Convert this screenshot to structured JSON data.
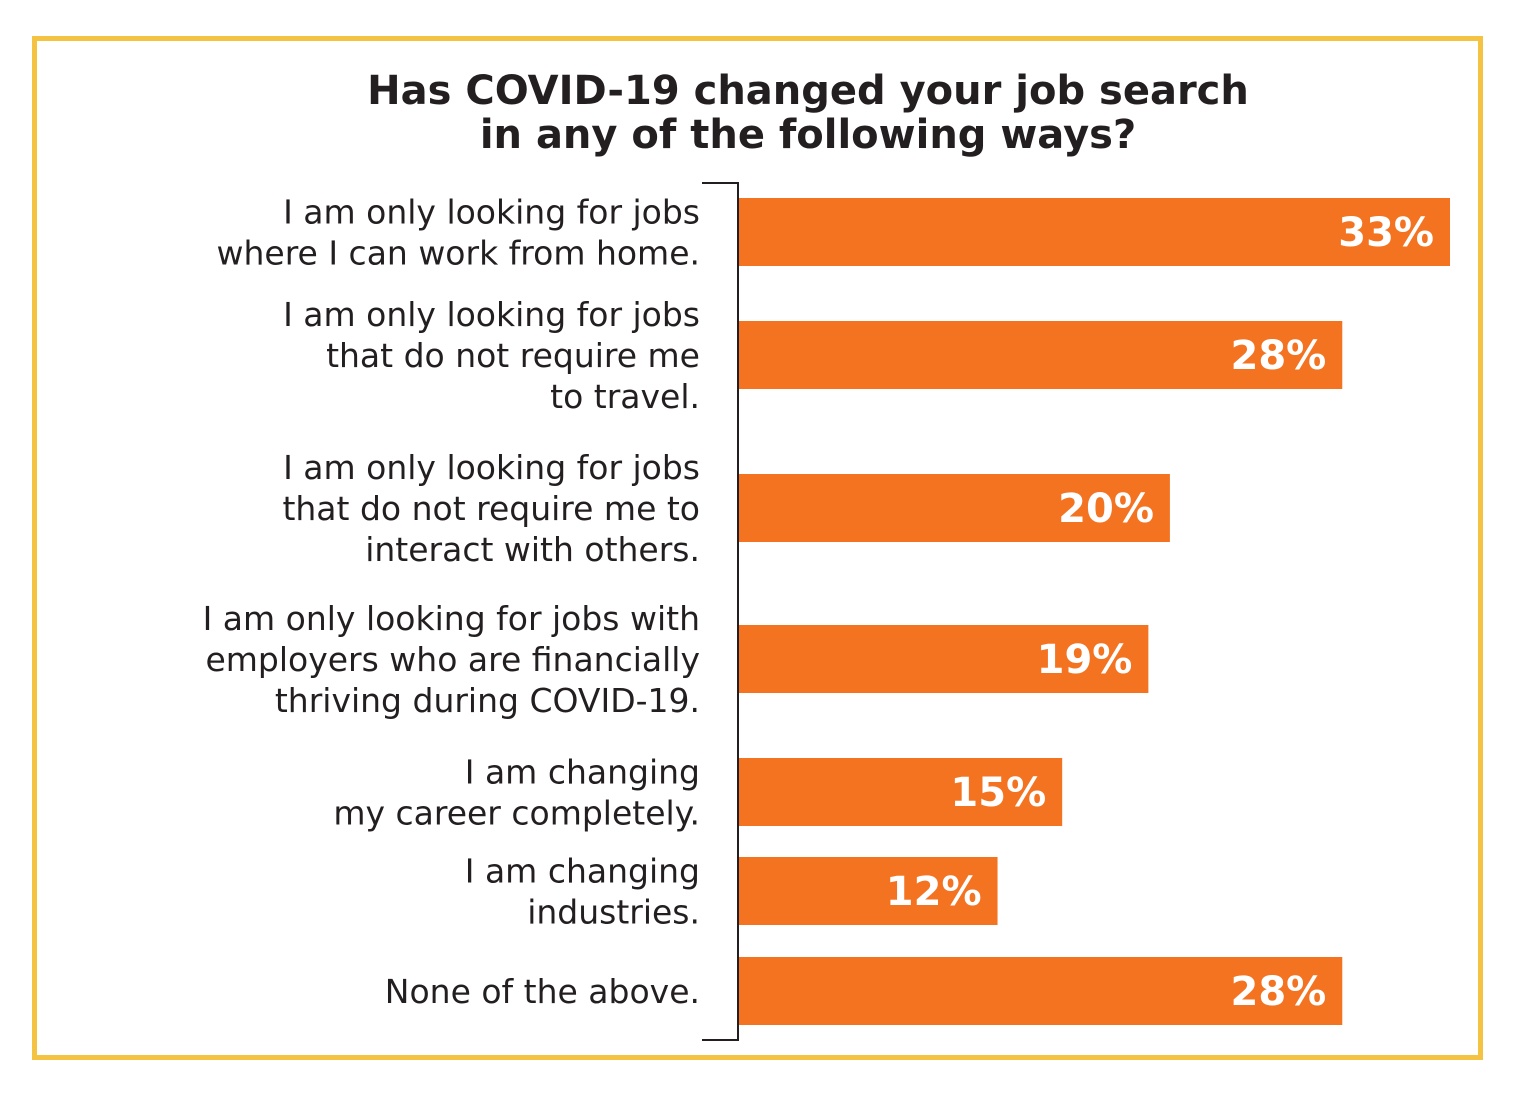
{
  "colors": {
    "bar": "#f37321",
    "border": "#f5c342",
    "text": "#231f20",
    "value_label": "#ffffff",
    "axis": "#231f20"
  },
  "chart_data": {
    "type": "bar",
    "orientation": "horizontal",
    "title_lines": [
      "Has COVID-19 changed your job search",
      "in any of the following ways?"
    ],
    "categories": [
      [
        "I am only looking for jobs",
        "where I can work from home."
      ],
      [
        "I am only looking for jobs",
        "that do not require me",
        "to travel."
      ],
      [
        "I am only looking for jobs",
        "that do not require me to",
        "interact with others."
      ],
      [
        "I am only looking for jobs with",
        "employers who are financially",
        "thriving during COVID-19."
      ],
      [
        "I am changing",
        "my career completely."
      ],
      [
        "I am changing",
        "industries."
      ],
      [
        "None of the above."
      ]
    ],
    "values": [
      33,
      28,
      20,
      19,
      15,
      12,
      28
    ],
    "value_labels": [
      "33%",
      "28%",
      "20%",
      "19%",
      "15%",
      "12%",
      "28%"
    ],
    "unit": "%",
    "grid": false,
    "legend": false
  }
}
